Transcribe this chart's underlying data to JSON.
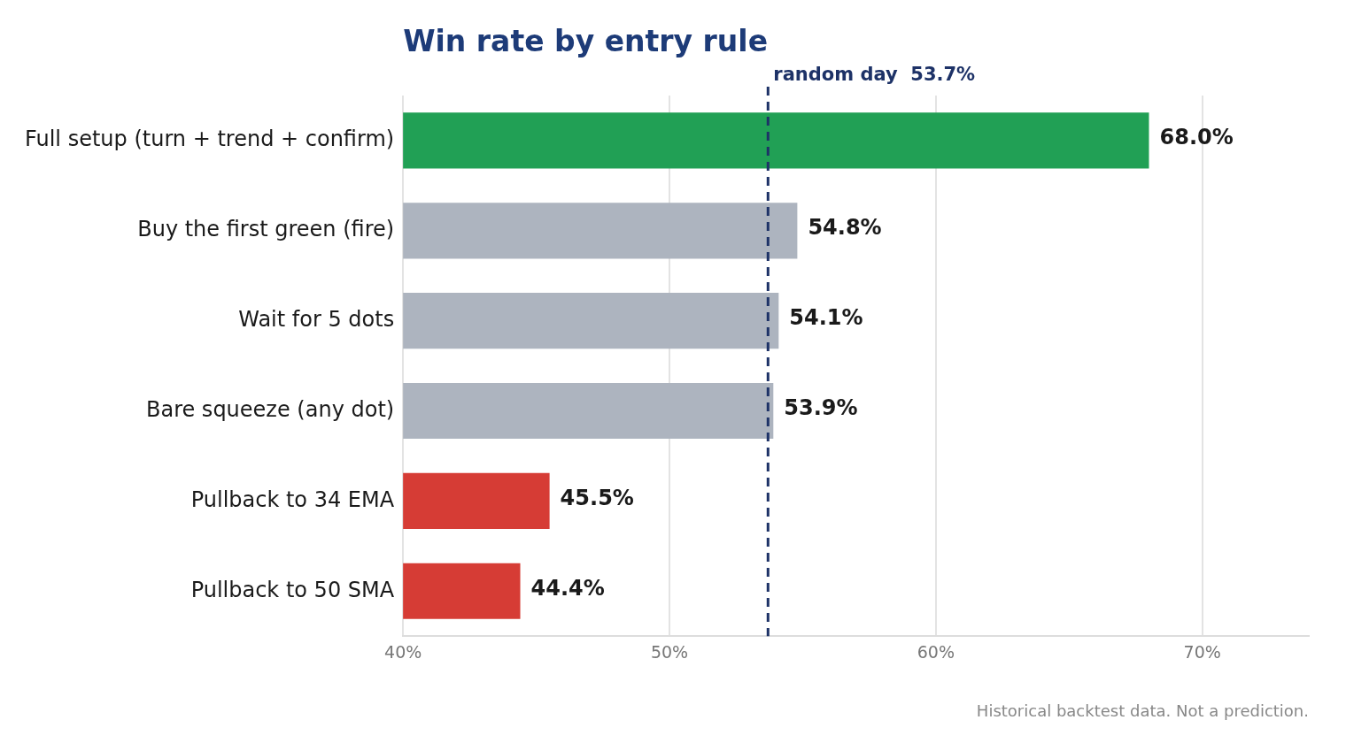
{
  "chart_data": {
    "type": "bar",
    "orientation": "horizontal",
    "title": "Win rate by entry rule",
    "categories": [
      "Full setup (turn + trend + confirm)",
      "Buy the first green (fire)",
      "Wait for 5 dots",
      "Bare squeeze (any dot)",
      "Pullback to 34 EMA",
      "Pullback to 50 SMA"
    ],
    "values": [
      68.0,
      54.8,
      54.1,
      53.9,
      45.5,
      44.4
    ],
    "value_labels": [
      "68.0%",
      "54.8%",
      "54.1%",
      "53.9%",
      "45.5%",
      "44.4%"
    ],
    "colors": [
      "#21a055",
      "#adb4bf",
      "#adb4bf",
      "#adb4bf",
      "#d63c35",
      "#d63c35"
    ],
    "xlim": [
      40,
      74
    ],
    "xticks": [
      {
        "value": 40,
        "label": "40%"
      },
      {
        "value": 50,
        "label": "50%"
      },
      {
        "value": 60,
        "label": "60%"
      },
      {
        "value": 70,
        "label": "70%"
      }
    ],
    "grid": "x",
    "legend": false,
    "ref_lines": [
      {
        "axis": "x",
        "value": 53.7,
        "label": "random day  53.7%",
        "color": "#1d3267",
        "line_style": "dashed"
      }
    ],
    "annotations": [
      "Historical backtest data. Not a prediction."
    ]
  }
}
